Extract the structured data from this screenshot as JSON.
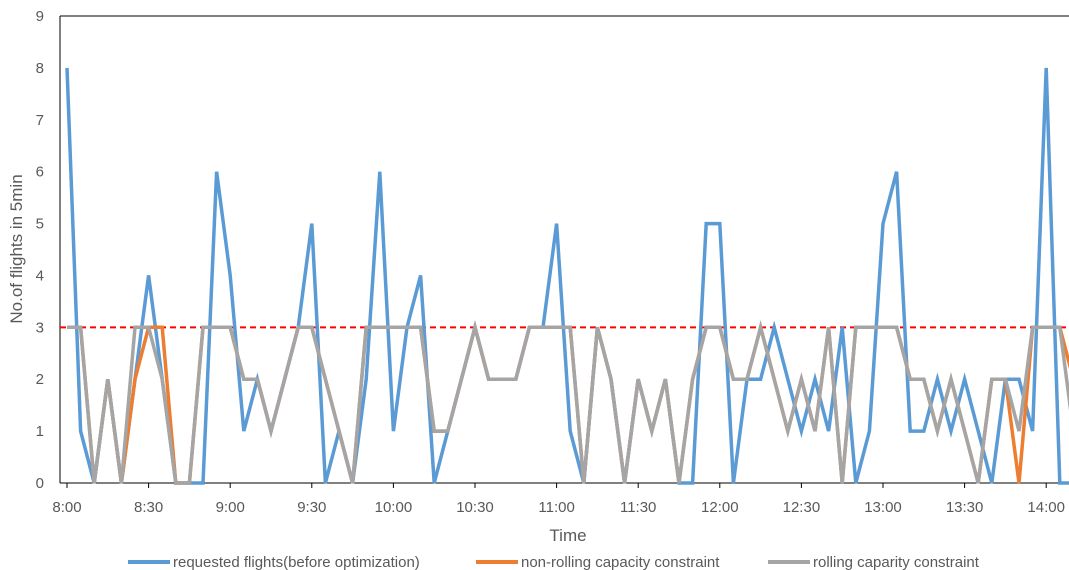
{
  "chart_data": {
    "type": "line",
    "title": "",
    "xlabel": "Time",
    "ylabel": "No.of flights in 5min",
    "ylim": [
      0,
      9
    ],
    "yticks": [
      0,
      1,
      2,
      3,
      4,
      5,
      6,
      7,
      8,
      9
    ],
    "x_tick_labels": [
      "8:00",
      "8:30",
      "9:00",
      "9:30",
      "10:00",
      "10:30",
      "11:00",
      "11:30",
      "12:00",
      "12:30",
      "13:00",
      "13:30",
      "14:00"
    ],
    "x_interval": "5min",
    "reference_line": {
      "y": 3,
      "color": "#ff0000",
      "style": "dashed"
    },
    "grid": false,
    "legend_position": "bottom",
    "series": [
      {
        "name": "requested flights(before optimization)",
        "color": "#5b9bd5",
        "values": [
          8,
          1,
          0,
          2,
          0,
          2,
          4,
          2,
          0,
          0,
          0,
          6,
          4,
          1,
          2,
          1,
          2,
          3,
          5,
          0,
          1,
          0,
          2,
          6,
          1,
          3,
          4,
          0,
          1,
          2,
          3,
          2,
          2,
          2,
          3,
          3,
          5,
          1,
          0,
          3,
          2,
          0,
          2,
          1,
          2,
          0,
          0,
          5,
          5,
          0,
          2,
          2,
          3,
          2,
          1,
          2,
          1,
          3,
          0,
          1,
          5,
          6,
          1,
          1,
          2,
          1,
          2,
          1,
          0,
          2,
          2,
          1,
          8,
          0,
          0
        ]
      },
      {
        "name": "non-rolling capacity constraint",
        "color": "#ed7d31",
        "values": [
          3,
          3,
          0,
          2,
          0,
          2,
          3,
          3,
          0,
          0,
          3,
          3,
          3,
          2,
          2,
          1,
          2,
          3,
          3,
          2,
          1,
          0,
          3,
          3,
          3,
          3,
          3,
          1,
          1,
          2,
          3,
          2,
          2,
          2,
          3,
          3,
          3,
          3,
          0,
          3,
          2,
          0,
          2,
          1,
          2,
          0,
          2,
          3,
          3,
          2,
          2,
          3,
          2,
          1,
          2,
          1,
          3,
          0,
          3,
          3,
          3,
          3,
          2,
          2,
          1,
          2,
          1,
          0,
          2,
          2,
          0,
          3,
          3,
          3,
          2
        ]
      },
      {
        "name": "rolling caparity constraint",
        "color": "#a5a5a5",
        "values": [
          3,
          3,
          0,
          2,
          0,
          3,
          3,
          2,
          0,
          0,
          3,
          3,
          3,
          2,
          2,
          1,
          2,
          3,
          3,
          2,
          1,
          0,
          3,
          3,
          3,
          3,
          3,
          1,
          1,
          2,
          3,
          2,
          2,
          2,
          3,
          3,
          3,
          3,
          0,
          3,
          2,
          0,
          2,
          1,
          2,
          0,
          2,
          3,
          3,
          2,
          2,
          3,
          2,
          1,
          2,
          1,
          3,
          0,
          3,
          3,
          3,
          3,
          2,
          2,
          1,
          2,
          1,
          0,
          2,
          2,
          1,
          3,
          3,
          3,
          1
        ]
      }
    ]
  }
}
